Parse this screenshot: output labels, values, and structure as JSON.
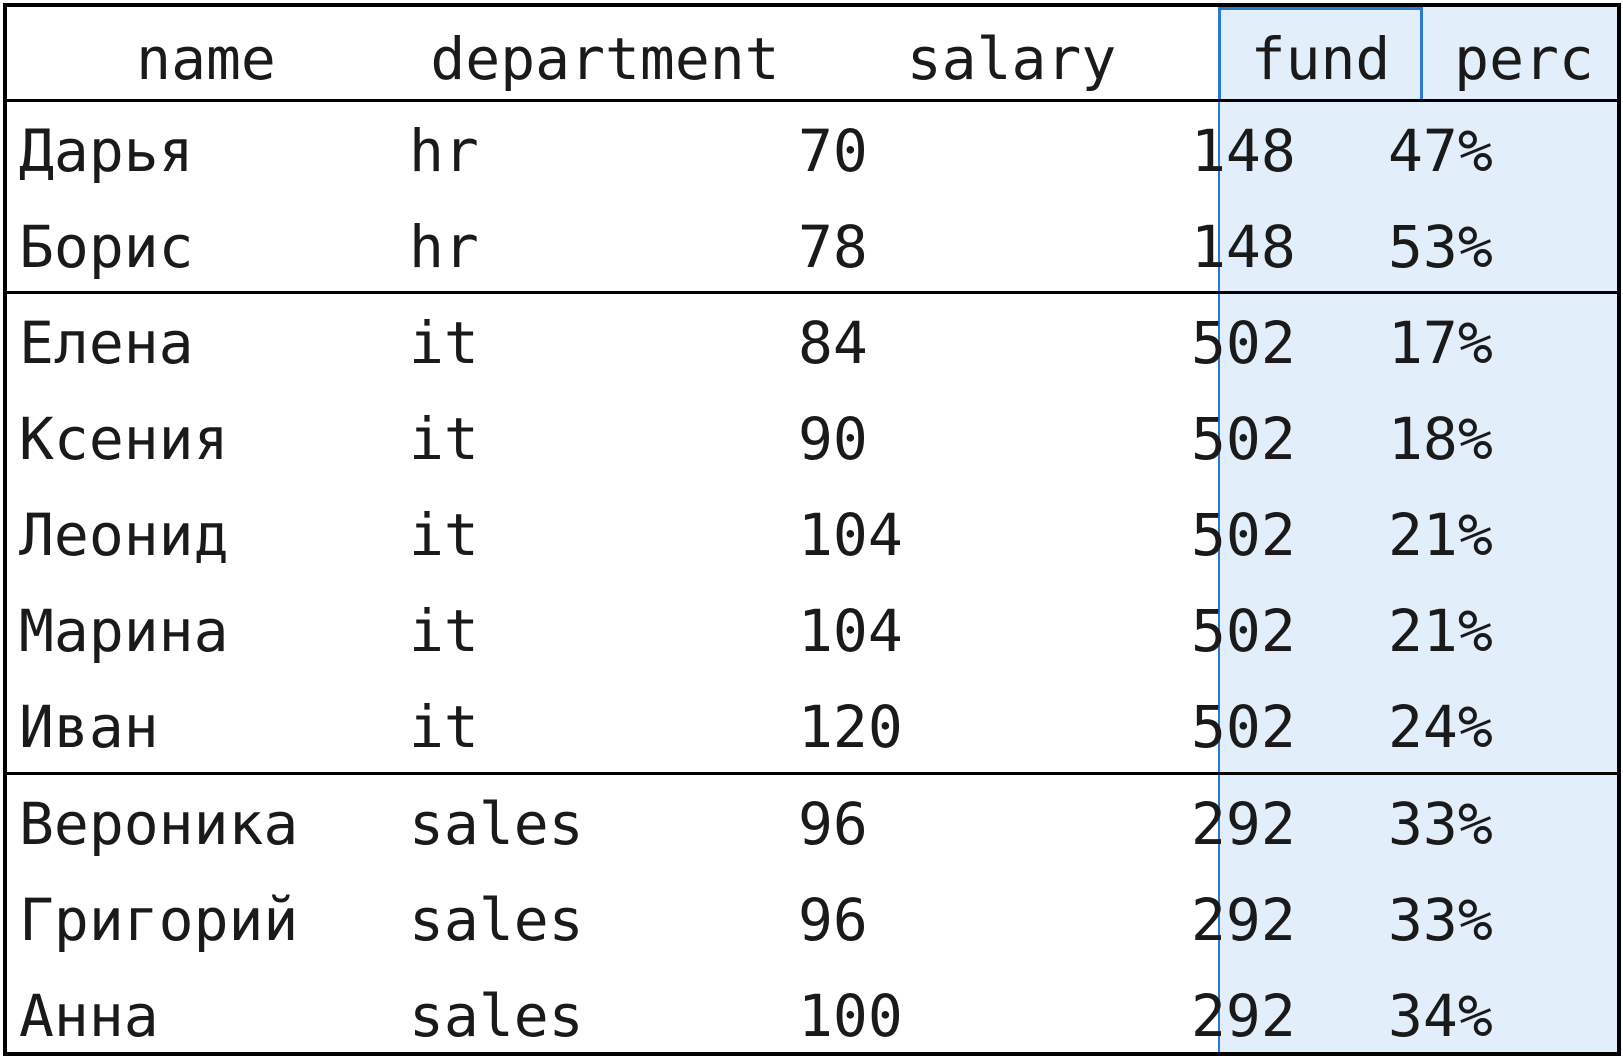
{
  "table": {
    "columns": [
      "name",
      "department",
      "salary",
      "fund",
      "perc"
    ],
    "groups": [
      {
        "rows": [
          {
            "name": "Дарья",
            "department": "hr",
            "salary": "70",
            "fund": "148",
            "perc": "47%"
          },
          {
            "name": "Борис",
            "department": "hr",
            "salary": "78",
            "fund": "148",
            "perc": "53%"
          }
        ]
      },
      {
        "rows": [
          {
            "name": "Елена",
            "department": "it",
            "salary": "84",
            "fund": "502",
            "perc": "17%"
          },
          {
            "name": "Ксения",
            "department": "it",
            "salary": "90",
            "fund": "502",
            "perc": "18%"
          },
          {
            "name": "Леонид",
            "department": "it",
            "salary": "104",
            "fund": "502",
            "perc": "21%"
          },
          {
            "name": "Марина",
            "department": "it",
            "salary": "104",
            "fund": "502",
            "perc": "21%"
          },
          {
            "name": "Иван",
            "department": "it",
            "salary": "120",
            "fund": "502",
            "perc": "24%"
          }
        ]
      },
      {
        "rows": [
          {
            "name": "Вероника",
            "department": "sales",
            "salary": "96",
            "fund": "292",
            "perc": "33%"
          },
          {
            "name": "Григорий",
            "department": "sales",
            "salary": "96",
            "fund": "292",
            "perc": "33%"
          },
          {
            "name": "Анна",
            "department": "sales",
            "salary": "100",
            "fund": "292",
            "perc": "34%"
          }
        ]
      }
    ],
    "selected_columns": [
      "fund",
      "perc"
    ],
    "highlight_color": "#e3eefb",
    "selection_border_color": "#2a7ad5"
  }
}
